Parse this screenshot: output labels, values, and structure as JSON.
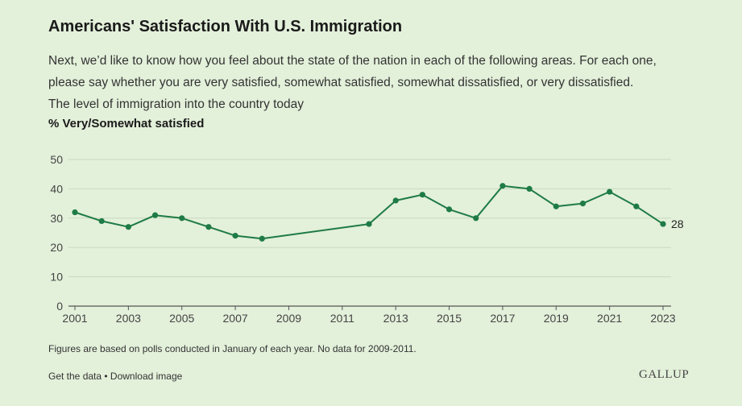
{
  "header": {
    "title": "Americans' Satisfaction With U.S. Immigration",
    "question_lines": [
      "Next, we’d like to know how you feel about the state of the nation in each of the following areas. For each one,",
      "please say whether you are very satisfied, somewhat satisfied, somewhat dissatisfied, or very dissatisfied.",
      "The level of immigration into the country today"
    ],
    "measure": "% Very/Somewhat satisfied"
  },
  "chart_data": {
    "type": "line",
    "title": "Americans' Satisfaction With U.S. Immigration",
    "ylabel": "% Very/Somewhat satisfied",
    "xlim": [
      2001,
      2023
    ],
    "ylim": [
      0,
      50
    ],
    "x_ticks": [
      "2001",
      "2003",
      "2005",
      "2007",
      "2009",
      "2011",
      "2013",
      "2015",
      "2017",
      "2019",
      "2021",
      "2023"
    ],
    "y_ticks": [
      "0",
      "10",
      "20",
      "30",
      "40",
      "50"
    ],
    "grid": true,
    "series": [
      {
        "x": [
          2001,
          2002,
          2003,
          2004,
          2005,
          2006,
          2007,
          2008,
          2012,
          2013,
          2014,
          2015,
          2016,
          2017,
          2018,
          2019,
          2020,
          2021,
          2022,
          2023
        ],
        "y": [
          32,
          29,
          27,
          31,
          30,
          27,
          24,
          23,
          28,
          36,
          38,
          33,
          30,
          41,
          40,
          34,
          35,
          39,
          34,
          28
        ]
      }
    ],
    "end_label": "28",
    "color": "#1e7b45"
  },
  "footer": {
    "note": "Figures are based on polls conducted in January of each year. No data for 2009-2011.",
    "get_data": "Get the data",
    "separator": " • ",
    "download": "Download image",
    "logo": "GALLUP"
  }
}
